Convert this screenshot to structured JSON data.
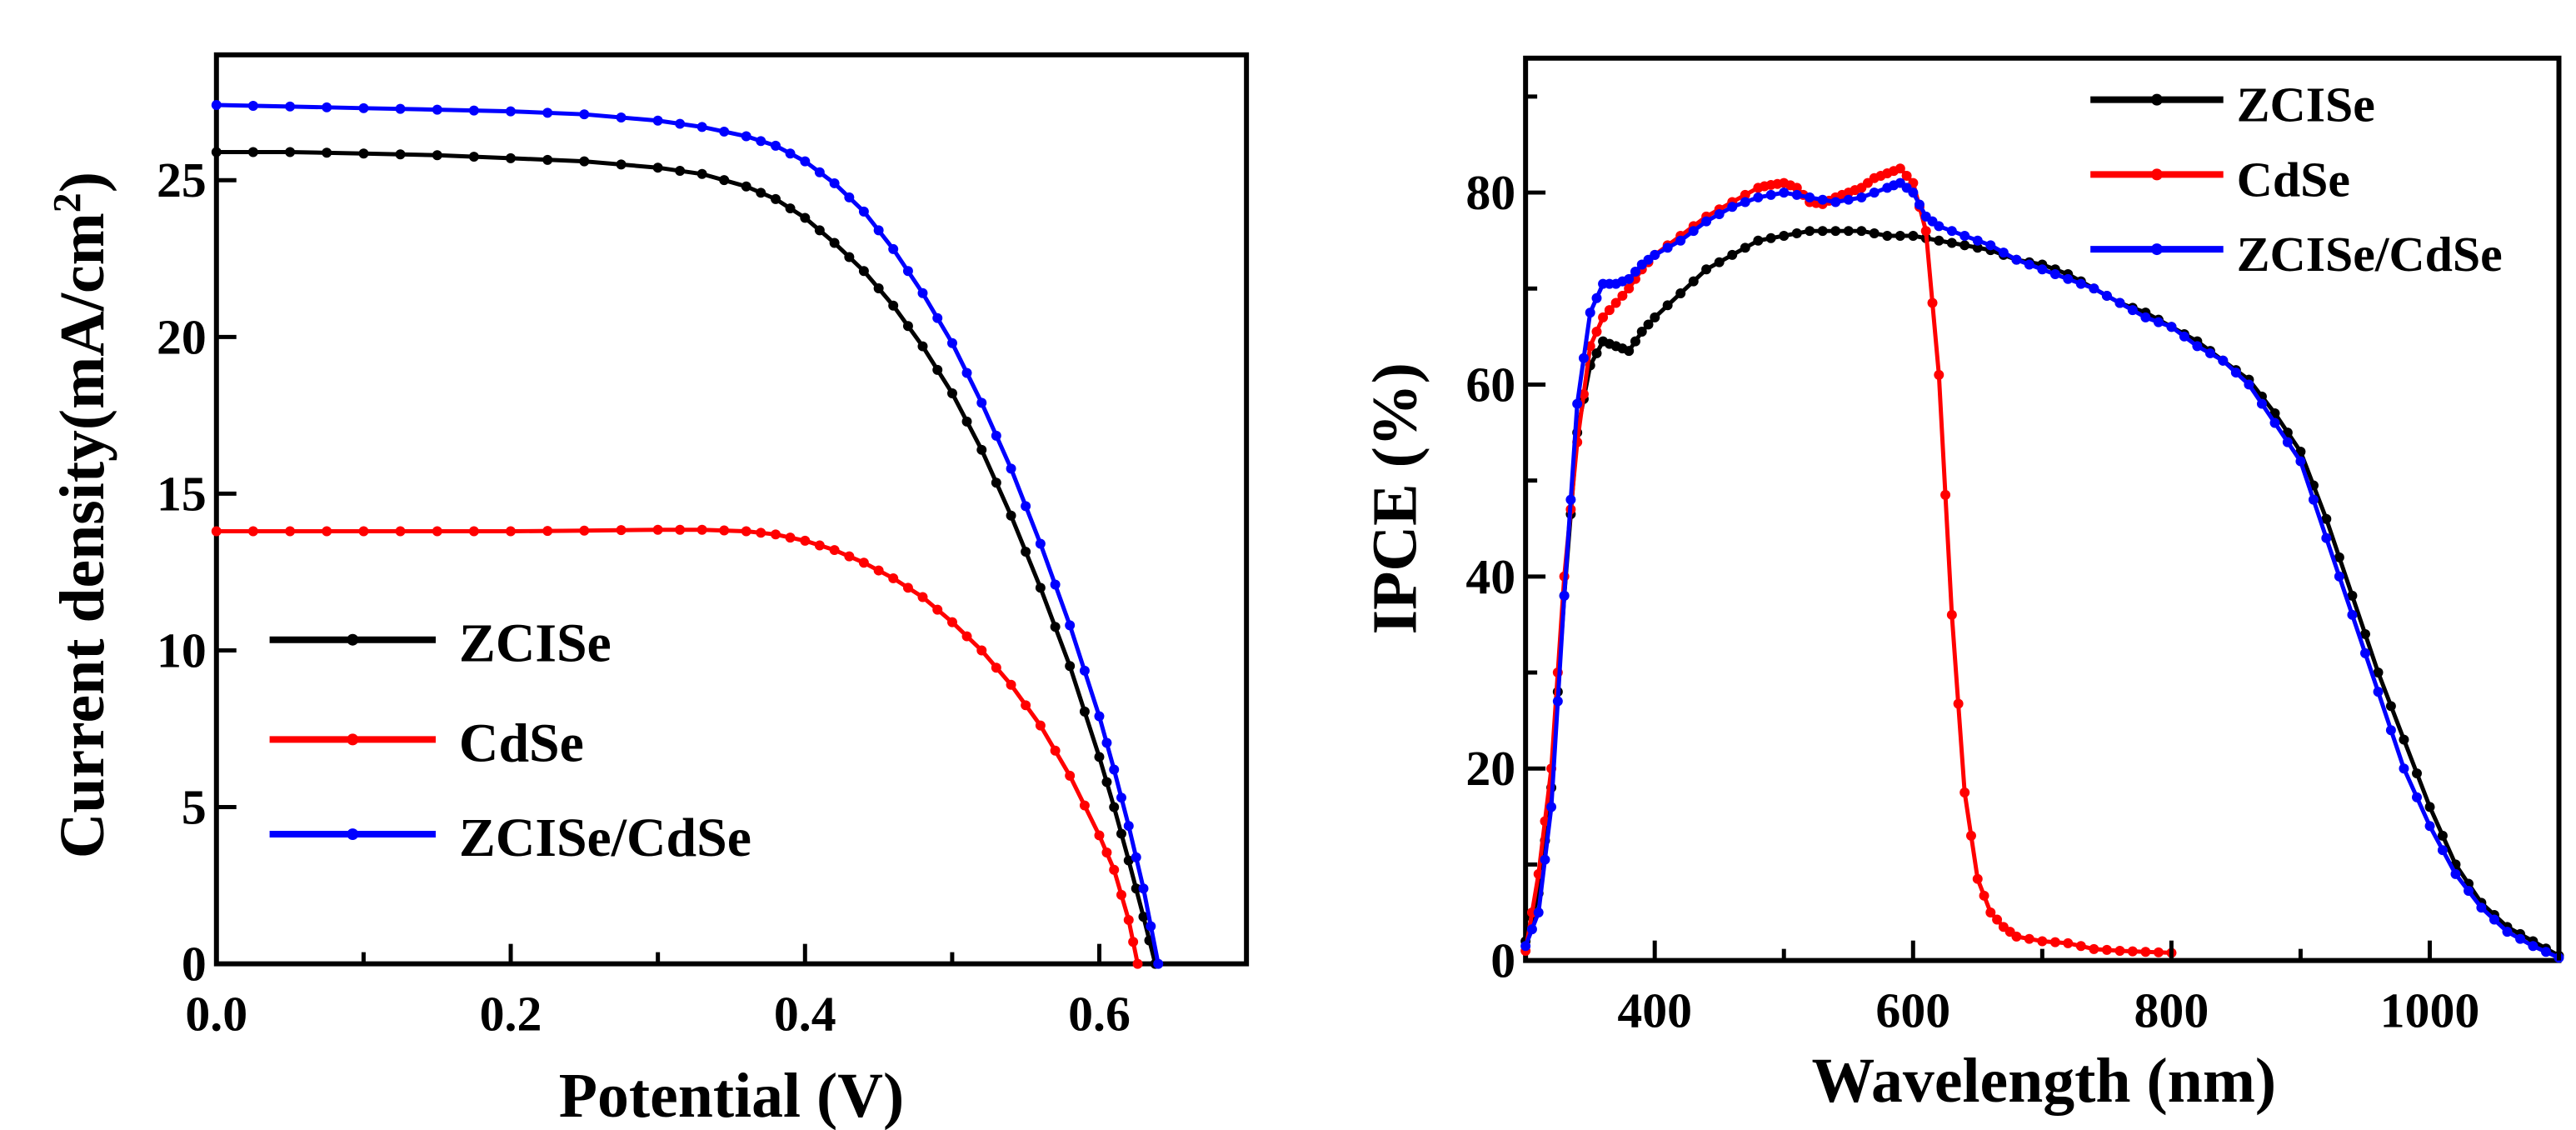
{
  "chart_data": [
    {
      "type": "line",
      "title": "",
      "xlabel": "Potential (V)",
      "ylabel": "Current density(mA/cm²)",
      "ylabel_parts": {
        "main": "Current density(mA/cm",
        "sup": "2",
        "end": ")"
      },
      "xlim": [
        0,
        0.7
      ],
      "ylim": [
        0,
        29
      ],
      "xticks": [
        0.0,
        0.2,
        0.4,
        0.6
      ],
      "xtick_labels": [
        "0.0",
        "0.2",
        "0.4",
        "0.6"
      ],
      "xminor": [
        0.1,
        0.3,
        0.5,
        0.7
      ],
      "yticks": [
        0,
        5,
        10,
        15,
        20,
        25
      ],
      "ytick_labels": [
        "0",
        "5",
        "10",
        "15",
        "20",
        "25"
      ],
      "grid": false,
      "legend": {
        "placement": "center-left",
        "entries": [
          "ZCISe",
          "CdSe",
          "ZCISe/CdSe"
        ]
      },
      "series": [
        {
          "name": "ZCISe",
          "color": "#000000",
          "x": [
            0,
            0.05,
            0.1,
            0.15,
            0.2,
            0.25,
            0.3,
            0.33,
            0.36,
            0.38,
            0.4,
            0.42,
            0.44,
            0.46,
            0.48,
            0.5,
            0.52,
            0.54,
            0.56,
            0.58,
            0.6,
            0.61,
            0.62,
            0.63,
            0.638
          ],
          "y": [
            25.9,
            25.9,
            25.85,
            25.8,
            25.7,
            25.6,
            25.4,
            25.2,
            24.8,
            24.4,
            23.8,
            23.0,
            22.1,
            21.0,
            19.7,
            18.2,
            16.4,
            14.3,
            12.0,
            9.5,
            6.6,
            5.0,
            3.3,
            1.5,
            0
          ]
        },
        {
          "name": "CdSe",
          "color": "#ff0000",
          "x": [
            0,
            0.05,
            0.1,
            0.15,
            0.2,
            0.25,
            0.3,
            0.33,
            0.36,
            0.38,
            0.4,
            0.42,
            0.44,
            0.46,
            0.48,
            0.5,
            0.52,
            0.54,
            0.56,
            0.58,
            0.6,
            0.61,
            0.62,
            0.626
          ],
          "y": [
            13.8,
            13.8,
            13.8,
            13.8,
            13.8,
            13.82,
            13.85,
            13.85,
            13.8,
            13.7,
            13.5,
            13.2,
            12.8,
            12.3,
            11.7,
            10.9,
            10.0,
            8.9,
            7.6,
            6.0,
            4.1,
            3.0,
            1.4,
            0
          ]
        },
        {
          "name": "ZCISe/CdSe",
          "color": "#0000ff",
          "x": [
            0,
            0.05,
            0.1,
            0.15,
            0.2,
            0.25,
            0.3,
            0.33,
            0.36,
            0.38,
            0.4,
            0.42,
            0.44,
            0.46,
            0.48,
            0.5,
            0.52,
            0.54,
            0.56,
            0.58,
            0.6,
            0.61,
            0.62,
            0.63,
            0.64
          ],
          "y": [
            27.4,
            27.35,
            27.3,
            27.25,
            27.2,
            27.1,
            26.9,
            26.7,
            26.4,
            26.1,
            25.6,
            24.9,
            24.0,
            22.8,
            21.4,
            19.8,
            17.9,
            15.8,
            13.4,
            10.8,
            7.9,
            6.2,
            4.4,
            2.4,
            0
          ]
        }
      ]
    },
    {
      "type": "line",
      "title": "",
      "xlabel": "Wavelength (nm)",
      "ylabel": "IPCE (%)",
      "xlim": [
        300,
        1100
      ],
      "ylim": [
        0,
        94
      ],
      "xticks": [
        400,
        600,
        800,
        1000
      ],
      "xtick_labels": [
        "400",
        "600",
        "800",
        "1000"
      ],
      "xminor": [
        500,
        700,
        900,
        1100
      ],
      "yticks": [
        0,
        20,
        40,
        60,
        80
      ],
      "ytick_labels": [
        "0",
        "20",
        "40",
        "60",
        "80"
      ],
      "yminor": [
        10,
        30,
        50,
        70,
        90
      ],
      "grid": false,
      "legend": {
        "placement": "top-right",
        "entries": [
          "ZCISe",
          "CdSe",
          "ZCISe/CdSe"
        ]
      },
      "series": [
        {
          "name": "ZCISe",
          "color": "#000000",
          "x": [
            300,
            310,
            320,
            330,
            340,
            350,
            360,
            370,
            380,
            390,
            400,
            420,
            440,
            460,
            480,
            500,
            520,
            540,
            560,
            580,
            600,
            620,
            640,
            660,
            680,
            700,
            720,
            740,
            760,
            780,
            800,
            820,
            840,
            860,
            880,
            900,
            920,
            940,
            960,
            980,
            1000,
            1020,
            1040,
            1060,
            1080,
            1100
          ],
          "y": [
            2,
            7,
            18,
            38,
            55,
            62,
            64.5,
            64,
            63.5,
            65.5,
            67,
            69.5,
            72,
            73.5,
            75,
            75.5,
            76,
            76,
            76,
            75.5,
            75.5,
            75,
            74.5,
            74,
            73,
            72.5,
            71.5,
            70,
            68.5,
            67.5,
            66,
            64.5,
            62.5,
            60.5,
            57,
            53,
            46,
            38,
            30,
            23,
            16,
            10,
            6,
            3.5,
            2,
            0.5
          ]
        },
        {
          "name": "CdSe",
          "color": "#ff0000",
          "x": [
            300,
            310,
            320,
            330,
            340,
            350,
            360,
            370,
            380,
            390,
            400,
            420,
            440,
            460,
            480,
            490,
            500,
            510,
            520,
            530,
            540,
            550,
            560,
            570,
            580,
            590,
            600,
            610,
            620,
            630,
            640,
            650,
            660,
            670,
            680,
            700,
            720,
            740,
            760,
            780,
            800
          ],
          "y": [
            1,
            9,
            20,
            40,
            54,
            64,
            67,
            68.5,
            70,
            72,
            73.5,
            75.5,
            77.5,
            79,
            80.5,
            80.8,
            81,
            80.5,
            79,
            78.8,
            79.5,
            80,
            80.5,
            81.5,
            82,
            82.5,
            81,
            76,
            61,
            36,
            17.5,
            8.5,
            5,
            3.5,
            2.5,
            2,
            1.8,
            1.2,
            1,
            0.9,
            0.8
          ]
        },
        {
          "name": "ZCISe/CdSe",
          "color": "#0000ff",
          "x": [
            300,
            310,
            320,
            330,
            340,
            350,
            360,
            370,
            380,
            390,
            400,
            420,
            440,
            460,
            480,
            500,
            520,
            540,
            560,
            580,
            590,
            600,
            610,
            620,
            640,
            660,
            680,
            700,
            720,
            740,
            760,
            780,
            800,
            820,
            840,
            860,
            880,
            900,
            920,
            940,
            960,
            980,
            1000,
            1020,
            1040,
            1060,
            1080,
            1100
          ],
          "y": [
            1.5,
            5,
            16,
            38,
            58,
            67.5,
            70.5,
            70.5,
            71,
            72.5,
            73.5,
            75,
            77,
            78.5,
            79.5,
            80,
            79.5,
            79,
            79.5,
            80.5,
            81,
            80,
            77.5,
            76.5,
            75.5,
            74.5,
            73,
            72,
            71,
            70,
            68.5,
            67,
            66,
            64,
            62.5,
            60,
            56,
            52,
            44,
            36,
            28,
            20,
            14,
            9,
            5.5,
            3,
            1.5,
            0.3
          ]
        }
      ]
    }
  ]
}
